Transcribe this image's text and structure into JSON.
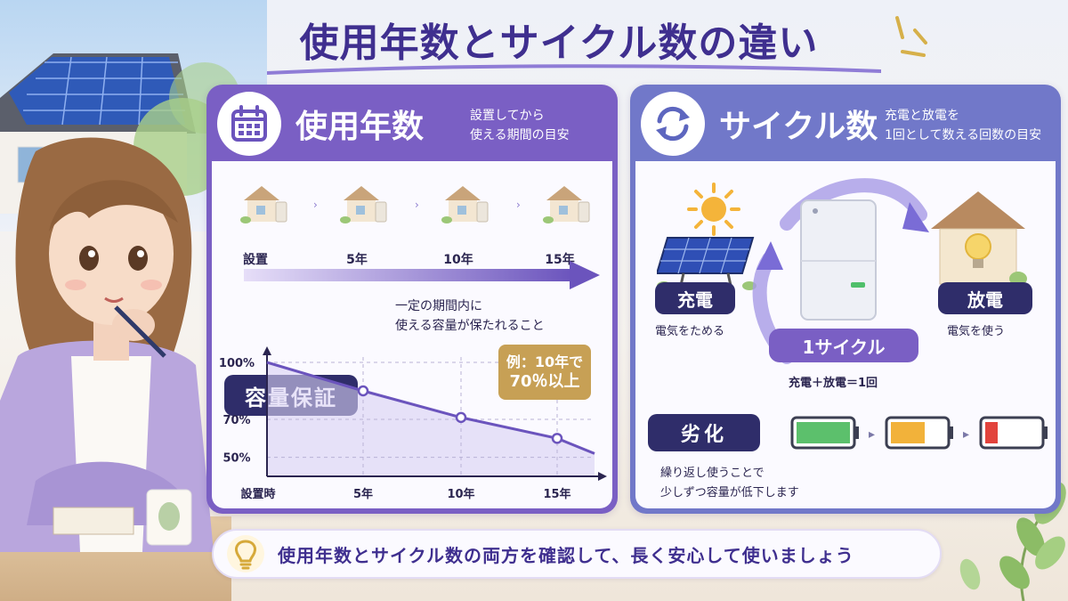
{
  "title": "使用年数とサイクル数の違い",
  "left_panel": {
    "title": "使用年数",
    "icon": "calendar-icon",
    "description_line1": "設置してから",
    "description_line2": "使える期間の目安",
    "timeline": [
      "設置",
      "5年",
      "10年",
      "15年"
    ],
    "capacity_badge": "容量保証",
    "capacity_desc_line1": "一定の期間内に",
    "capacity_desc_line2": "使える容量が保たれること",
    "callout_line1": "例：10年で",
    "callout_line2": "70％以上"
  },
  "chart_data": {
    "type": "line",
    "x": [
      "設置時",
      "5年",
      "10年",
      "15年"
    ],
    "y_ticks": [
      "100%",
      "70%",
      "50%"
    ],
    "values": [
      100,
      85,
      71,
      60
    ],
    "end_value": 52,
    "ylim": [
      40,
      100
    ]
  },
  "right_panel": {
    "title": "サイクル数",
    "icon": "cycle-arrows-icon",
    "description_line1": "充電と放電を",
    "description_line2": "1回として数える回数の目安",
    "charge_label": "充電",
    "charge_sub": "電気をためる",
    "discharge_label": "放電",
    "discharge_sub": "電気を使う",
    "cycle_label": "1サイクル",
    "cycle_equation": "充電＋放電＝1回",
    "degradation_badge": "劣化",
    "degradation_line1": "繰り返し使うことで",
    "degradation_line2": "少しずつ容量が低下します"
  },
  "banner": {
    "icon": "lightbulb-icon",
    "text": "使用年数とサイクル数の両方を確認して、長く安心して使いましょう"
  },
  "colors": {
    "primary_purple": "#7a5fc4",
    "secondary_blue": "#7178c9",
    "navy": "#2f2d6a",
    "gold": "#c7a055"
  }
}
